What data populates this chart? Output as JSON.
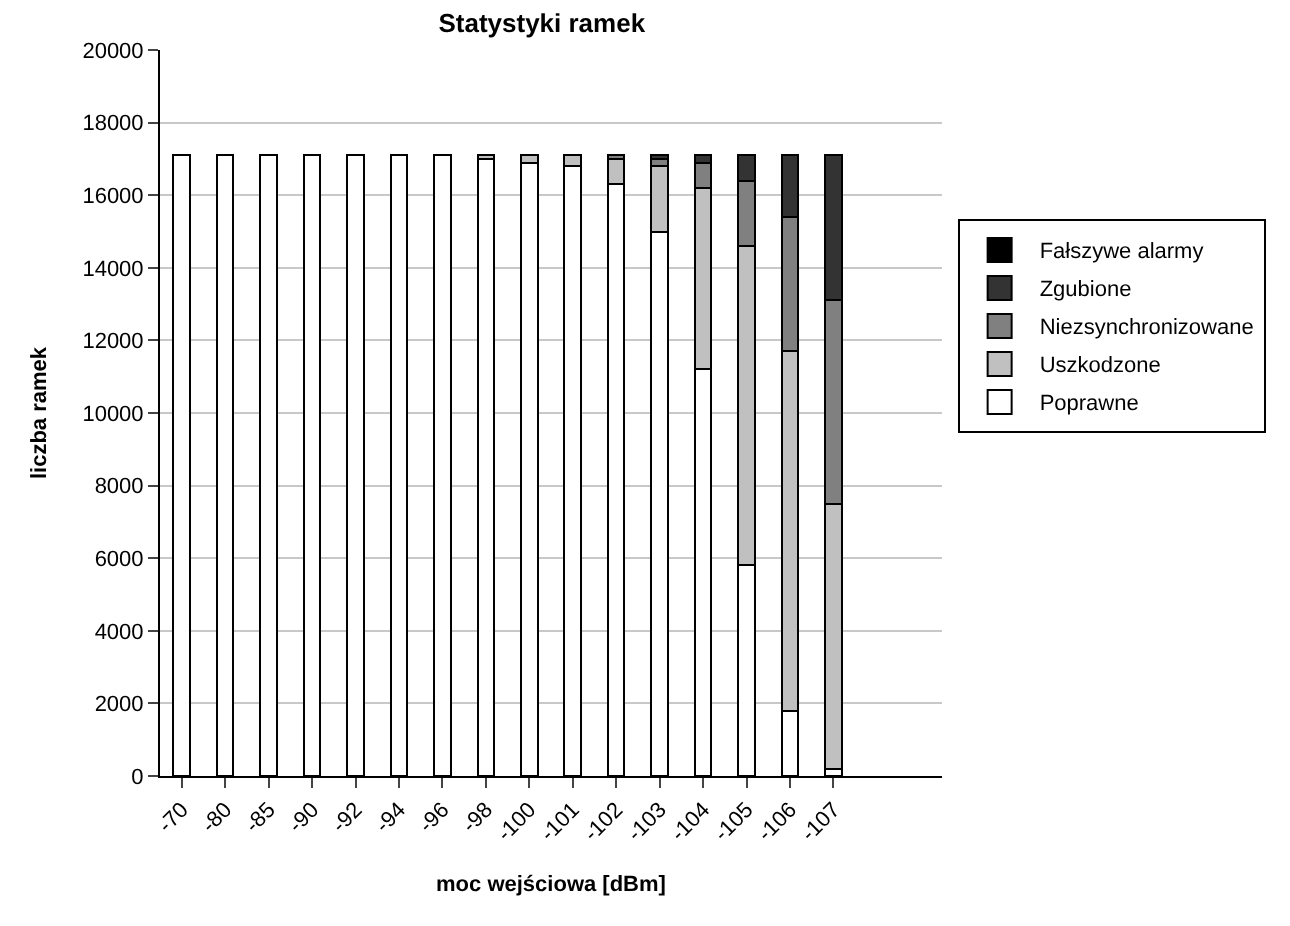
{
  "chart_data": {
    "type": "bar",
    "stacked": true,
    "title": "Statystyki ramek",
    "xlabel": "moc wejściowa [dBm]",
    "ylabel": "liczba ramek",
    "categories": [
      "-70",
      "-80",
      "-85",
      "-90",
      "-92",
      "-94",
      "-96",
      "-98",
      "-100",
      "-101",
      "-102",
      "-103",
      "-104",
      "-105",
      "-106",
      "-107",
      null,
      null
    ],
    "series": [
      {
        "name": "Poprawne",
        "color": "#ffffff",
        "values": [
          17100,
          17100,
          17100,
          17100,
          17100,
          17100,
          17100,
          17000,
          16900,
          16800,
          16300,
          15000,
          11200,
          5800,
          1800,
          200,
          null,
          null
        ]
      },
      {
        "name": "Uszkodzone",
        "color": "#c0c0c0",
        "values": [
          0,
          0,
          0,
          0,
          0,
          0,
          0,
          100,
          200,
          300,
          700,
          1800,
          5000,
          8800,
          9900,
          7300,
          null,
          null
        ]
      },
      {
        "name": "Niezsynchronizowane",
        "color": "#808080",
        "values": [
          0,
          0,
          0,
          0,
          0,
          0,
          0,
          0,
          0,
          0,
          100,
          200,
          700,
          1800,
          3700,
          5600,
          null,
          null
        ]
      },
      {
        "name": "Zgubione",
        "color": "#333333",
        "values": [
          0,
          0,
          0,
          0,
          0,
          0,
          0,
          0,
          0,
          0,
          0,
          100,
          200,
          700,
          1700,
          4000,
          null,
          null
        ]
      },
      {
        "name": "Fałszywe alarmy",
        "color": "#000000",
        "values": [
          0,
          0,
          0,
          0,
          0,
          0,
          0,
          0,
          0,
          0,
          0,
          0,
          0,
          0,
          0,
          0,
          null,
          null
        ]
      }
    ],
    "ylim": [
      0,
      20000
    ],
    "yticks": [
      0,
      2000,
      4000,
      6000,
      8000,
      10000,
      12000,
      14000,
      16000,
      18000,
      20000
    ],
    "grid": "y",
    "legend": "right"
  }
}
